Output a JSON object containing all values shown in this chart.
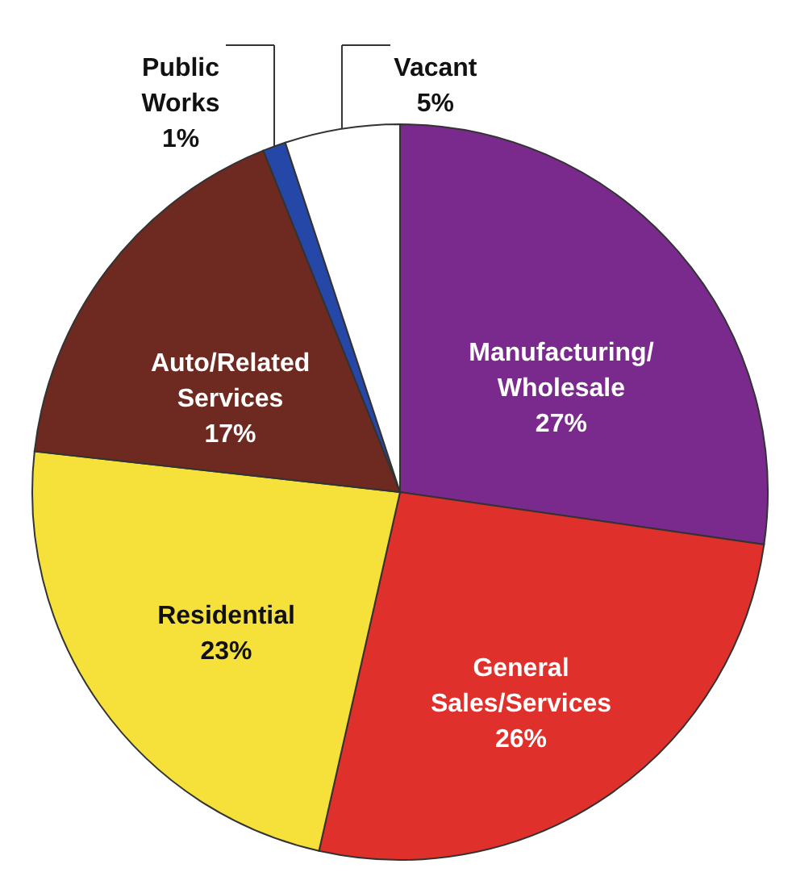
{
  "chart_data": {
    "type": "pie",
    "categories": [
      "Manufacturing/Wholesale",
      "General Sales/Services",
      "Residential",
      "Auto/Related Services",
      "Public Works",
      "Vacant"
    ],
    "values": [
      27,
      26,
      23,
      17,
      1,
      5
    ],
    "colors": [
      "#7a2a8c",
      "#e0302b",
      "#f6e03a",
      "#6e2a20",
      "#2548a8",
      "#ffffff"
    ],
    "value_labels": [
      "27%",
      "26%",
      "23%",
      "17%",
      "1%",
      "5%"
    ]
  }
}
